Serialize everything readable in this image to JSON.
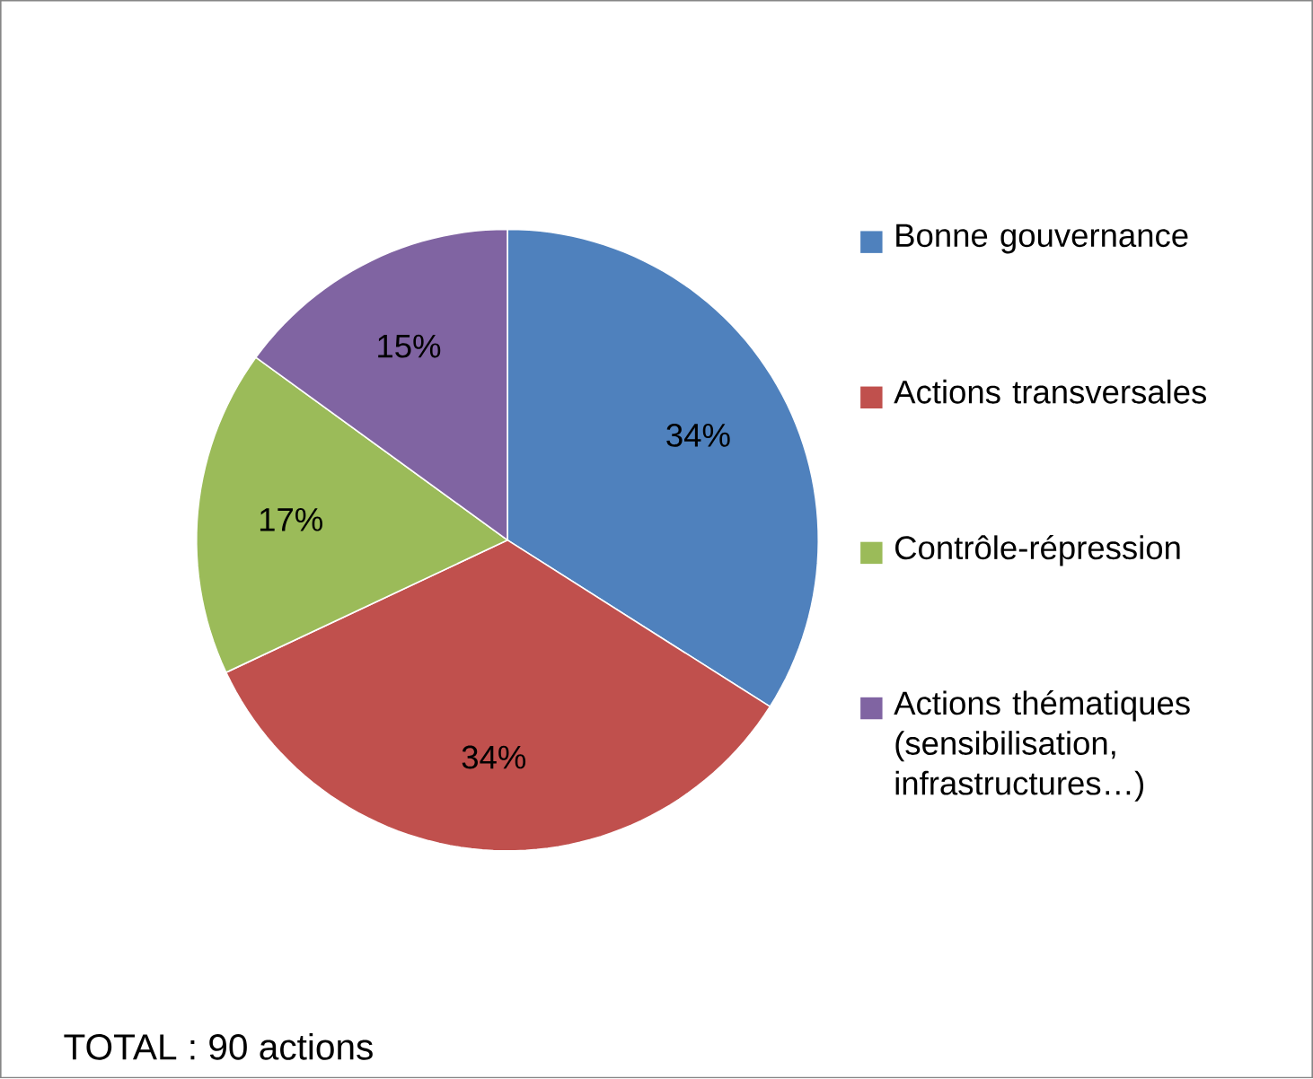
{
  "chart_data": {
    "type": "pie",
    "categories": [
      "Bonne gouvernance",
      "Actions transversales",
      "Contrôle-répression",
      "Actions thématiques (sensibilisation, infrastructures…)"
    ],
    "values": [
      34,
      34,
      17,
      15
    ],
    "value_labels": [
      "34%",
      "34%",
      "17%",
      "15%"
    ],
    "colors": [
      "#4f81bd",
      "#c0504d",
      "#9bbb59",
      "#8064a2"
    ],
    "legend": "right",
    "annotations": [
      "TOTAL : 90 actions"
    ]
  }
}
